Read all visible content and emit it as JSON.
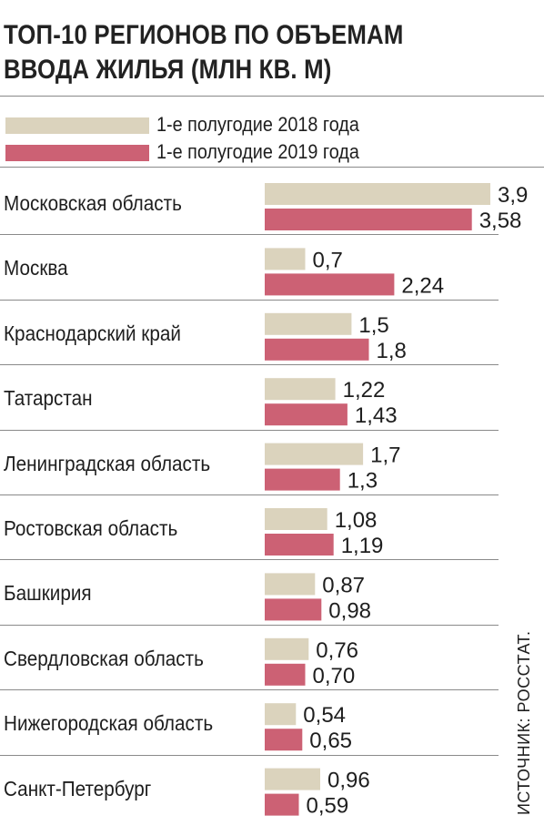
{
  "title": {
    "line1": "ТОП-10 РЕГИОНОВ ПО ОБЪЕМАМ",
    "line2": "ВВОДА ЖИЛЬЯ (МЛН КВ. М)"
  },
  "source": "ИСТОЧНИК: РОССТАТ.",
  "colors": {
    "series_2018": "#dbd3bd",
    "series_2019": "#cc6174",
    "separator": "#8a8a8a",
    "text": "#1e1e1e"
  },
  "chart_data": {
    "type": "bar",
    "orientation": "horizontal",
    "title": "ТОП-10 РЕГИОНОВ ПО ОБЪЕМАМ ВВОДА ЖИЛЬЯ (МЛН КВ. М)",
    "categories": [
      "Московская область",
      "Москва",
      "Краснодарский край",
      "Татарстан",
      "Ленинградская область",
      "Ростовская область",
      "Башкирия",
      "Свердловская область",
      "Нижегородская область",
      "Санкт-Петербург"
    ],
    "series": [
      {
        "name": "1-е полугодие 2018 года",
        "color": "#dbd3bd",
        "values": [
          3.9,
          0.7,
          1.5,
          1.22,
          1.7,
          1.08,
          0.87,
          0.76,
          0.54,
          0.96
        ],
        "labels": [
          "3,9",
          "0,7",
          "1,5",
          "1,22",
          "1,7",
          "1,08",
          "0,87",
          "0,76",
          "0,54",
          "0,96"
        ]
      },
      {
        "name": "1-е полугодие 2019 года",
        "color": "#cc6174",
        "values": [
          3.58,
          2.24,
          1.8,
          1.43,
          1.3,
          1.19,
          0.98,
          0.7,
          0.65,
          0.59
        ],
        "labels": [
          "3,58",
          "2,24",
          "1,8",
          "1,43",
          "1,3",
          "1,19",
          "0,98",
          "0,70",
          "0,65",
          "0,59"
        ]
      }
    ],
    "xlim": [
      0,
      3.9
    ],
    "grid": false,
    "legend": "top-left"
  }
}
